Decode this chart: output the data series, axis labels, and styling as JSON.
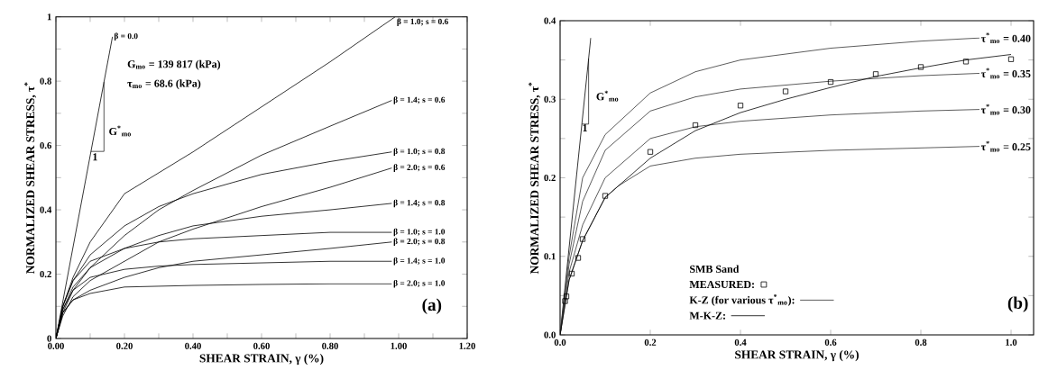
{
  "chart_data": [
    {
      "type": "line",
      "xlabel": "SHEAR STRAIN, γ (%)",
      "ylabel": "NORMALIZED SHEAR STRESS, τ$^{*}$",
      "marker": "none",
      "legend": "right",
      "xlim": [
        0,
        1.2
      ],
      "ylim": [
        0,
        1
      ],
      "xticks": [
        {
          "value": 0,
          "label": "0.00"
        },
        {
          "value": 0.1,
          "label": null
        },
        {
          "value": 0.2,
          "label": "0.20"
        },
        {
          "value": 0.3,
          "label": null
        },
        {
          "value": 0.4,
          "label": "0.40"
        },
        {
          "value": 0.5,
          "label": null
        },
        {
          "value": 0.6,
          "label": "0.60"
        },
        {
          "value": 0.7,
          "label": null
        },
        {
          "value": 0.8,
          "label": "0.80"
        },
        {
          "value": 0.9,
          "label": null
        },
        {
          "value": 1,
          "label": "1.00"
        },
        {
          "value": 1.1,
          "label": null
        },
        {
          "value": 1.2,
          "label": "1.20"
        }
      ],
      "yticks": [
        0,
        {
          "value": 0.1,
          "label": null
        },
        0.2,
        {
          "value": 0.3,
          "label": null
        },
        0.4,
        {
          "value": 0.5,
          "label": null
        },
        0.6,
        {
          "value": 0.7,
          "label": null
        },
        0.8,
        {
          "value": 0.9,
          "label": null
        },
        1
      ],
      "annotations": [
        "G$_{mo}$  =  139 817 (kPa)",
        "τ$_{mo}$  =  68.6 (kPa)",
        "G$^{*}$$_{mo}$",
        {
          "text": "1",
          "x": 0.102,
          "y": 0.58
        },
        "(a)"
      ],
      "series": [
        {
          "name": "β = 0.0",
          "color": "#000000",
          "x": [
            0,
            0.165
          ],
          "values": [
            0,
            0.938
          ]
        },
        {
          "name": "β = 1.0;  s = 0.6",
          "color": "#000000",
          "x": [
            0,
            0.02,
            0.05,
            0.1,
            0.2,
            0.4,
            0.6,
            0.8,
            0.99
          ],
          "values": [
            0,
            0.1,
            0.19,
            0.3,
            0.45,
            0.58,
            0.72,
            0.86,
            1.0
          ]
        },
        {
          "name": "β = 1.4;  s = 0.6",
          "color": "#000000",
          "x": [
            0,
            0.02,
            0.05,
            0.1,
            0.2,
            0.3,
            0.4,
            0.6,
            0.8,
            0.98
          ],
          "values": [
            0,
            0.08,
            0.15,
            0.22,
            0.32,
            0.4,
            0.46,
            0.57,
            0.66,
            0.74
          ]
        },
        {
          "name": "β = 1.0;  s = 0.8",
          "color": "#000000",
          "x": [
            0,
            0.02,
            0.05,
            0.1,
            0.2,
            0.3,
            0.4,
            0.6,
            0.8,
            0.98
          ],
          "values": [
            0,
            0.1,
            0.18,
            0.26,
            0.35,
            0.41,
            0.45,
            0.51,
            0.55,
            0.58
          ]
        },
        {
          "name": "β = 2.0;  s = 0.6",
          "color": "#000000",
          "x": [
            0,
            0.02,
            0.05,
            0.1,
            0.2,
            0.3,
            0.4,
            0.6,
            0.8,
            0.98
          ],
          "values": [
            0,
            0.07,
            0.13,
            0.18,
            0.24,
            0.3,
            0.34,
            0.41,
            0.47,
            0.53
          ]
        },
        {
          "name": "β = 1.4;  s = 0.8",
          "color": "#000000",
          "x": [
            0,
            0.02,
            0.05,
            0.1,
            0.2,
            0.3,
            0.4,
            0.6,
            0.8,
            0.98
          ],
          "values": [
            0,
            0.09,
            0.16,
            0.22,
            0.28,
            0.32,
            0.35,
            0.38,
            0.4,
            0.42
          ]
        },
        {
          "name": "β = 1.0;  s = 1.0",
          "color": "#000000",
          "x": [
            0,
            0.02,
            0.05,
            0.1,
            0.2,
            0.3,
            0.4,
            0.6,
            0.8,
            0.98
          ],
          "values": [
            0,
            0.1,
            0.18,
            0.24,
            0.28,
            0.3,
            0.31,
            0.32,
            0.33,
            0.33
          ]
        },
        {
          "name": "β = 2.0;  s = 0.8",
          "color": "#000000",
          "x": [
            0,
            0.02,
            0.05,
            0.1,
            0.2,
            0.3,
            0.4,
            0.6,
            0.8,
            0.98
          ],
          "values": [
            0,
            0.08,
            0.12,
            0.15,
            0.19,
            0.22,
            0.24,
            0.26,
            0.28,
            0.3
          ]
        },
        {
          "name": "β = 1.4;  s = 1.0",
          "color": "#000000",
          "x": [
            0,
            0.02,
            0.05,
            0.1,
            0.2,
            0.3,
            0.4,
            0.6,
            0.8,
            0.98
          ],
          "values": [
            0,
            0.09,
            0.15,
            0.19,
            0.215,
            0.225,
            0.23,
            0.235,
            0.24,
            0.24
          ]
        },
        {
          "name": "β = 2.0;  s = 1.0",
          "color": "#000000",
          "x": [
            0,
            0.02,
            0.05,
            0.1,
            0.2,
            0.4,
            0.6,
            0.8,
            0.98
          ],
          "values": [
            0,
            0.08,
            0.12,
            0.14,
            0.16,
            0.165,
            0.168,
            0.17,
            0.17
          ]
        }
      ]
    },
    {
      "type": "line",
      "xlabel": "SHEAR STRAIN, γ (%)",
      "ylabel": "NORMALIZED SHEAR STRESS, τ$^{*}$",
      "marker": "none",
      "legend": "bottom left",
      "legend_title": "SMB Sand",
      "xlim": [
        0,
        1.05
      ],
      "ylim": [
        0,
        0.4
      ],
      "xticks": [
        {
          "value": 0,
          "label": "0.0"
        },
        {
          "value": 0.2,
          "label": "0.2"
        },
        {
          "value": 0.4,
          "label": "0.4"
        },
        {
          "value": 0.6,
          "label": "0.6"
        },
        {
          "value": 0.8,
          "label": "0.8"
        },
        {
          "value": 1,
          "label": "1.0"
        }
      ],
      "yticks": [
        {
          "value": 0,
          "label": "0.0"
        },
        {
          "value": 0.05,
          "label": null
        },
        {
          "value": 0.1,
          "label": "0.1"
        },
        {
          "value": 0.15,
          "label": null
        },
        {
          "value": 0.2,
          "label": "0.2"
        },
        {
          "value": 0.25,
          "label": null
        },
        {
          "value": 0.3,
          "label": "0.3"
        },
        {
          "value": 0.35,
          "label": null
        },
        {
          "value": 0.4,
          "label": "0.4"
        }
      ],
      "annotations": [
        {
          "text": "τ$^{*}$$_{mo}$ = 0.40",
          "x": 0.93,
          "y": 0.378
        },
        {
          "text": "τ$^{*}$$_{mo}$ = 0.35",
          "x": 0.93,
          "y": 0.333
        },
        {
          "text": "τ$^{*}$$_{mo}$ = 0.30",
          "x": 0.93,
          "y": 0.287
        },
        {
          "text": "τ$^{*}$$_{mo}$ = 0.25",
          "x": 0.93,
          "y": 0.24
        },
        "G$^{*}$$_{mo}$",
        {
          "text": "1",
          "x": 0.055,
          "y": 0.27
        },
        "(b)"
      ],
      "series": [
        {
          "color": "#000000",
          "x": [
            0,
            0.068
          ],
          "values": [
            0,
            0.378
          ]
        },
        {
          "name": "MEASURED:",
          "type": "scatter",
          "marker": "square",
          "color": "#000000",
          "x": [
            0.011,
            0.014,
            0.026,
            0.04,
            0.05,
            0.1,
            0.2,
            0.3,
            0.4,
            0.5,
            0.6,
            0.7,
            0.8,
            0.9,
            1.0
          ],
          "values": [
            0.043,
            0.049,
            0.078,
            0.098,
            0.122,
            0.177,
            0.233,
            0.267,
            0.292,
            0.31,
            0.322,
            0.332,
            0.341,
            0.348,
            0.351
          ]
        },
        {
          "name": "K-Z (for various τ$^{*}$$_{mo}$):",
          "color": "#333333",
          "x": [
            0,
            0.02,
            0.05,
            0.1,
            0.2,
            0.3,
            0.4,
            0.6,
            0.8,
            0.93
          ],
          "values": [
            0,
            0.1,
            0.2,
            0.255,
            0.308,
            0.335,
            0.35,
            0.365,
            0.374,
            0.378
          ]
        },
        {
          "color": "#333333",
          "x": [
            0,
            0.02,
            0.05,
            0.1,
            0.2,
            0.3,
            0.4,
            0.6,
            0.8,
            0.93
          ],
          "values": [
            0,
            0.09,
            0.17,
            0.235,
            0.285,
            0.303,
            0.313,
            0.323,
            0.33,
            0.333
          ]
        },
        {
          "color": "#333333",
          "x": [
            0,
            0.02,
            0.05,
            0.1,
            0.2,
            0.3,
            0.4,
            0.6,
            0.8,
            0.93
          ],
          "values": [
            0,
            0.08,
            0.14,
            0.2,
            0.25,
            0.265,
            0.272,
            0.28,
            0.285,
            0.287
          ]
        },
        {
          "color": "#333333",
          "x": [
            0,
            0.02,
            0.05,
            0.1,
            0.13,
            0.2,
            0.3,
            0.4,
            0.6,
            0.8,
            0.93
          ],
          "values": [
            0,
            0.07,
            0.12,
            0.175,
            0.19,
            0.215,
            0.225,
            0.23,
            0.235,
            0.238,
            0.24
          ]
        },
        {
          "name": "M-K-Z:",
          "color": "#000000",
          "x": [
            0,
            0.02,
            0.05,
            0.1,
            0.2,
            0.3,
            0.4,
            0.5,
            0.6,
            0.7,
            0.8,
            0.9,
            1.0
          ],
          "values": [
            0,
            0.07,
            0.12,
            0.175,
            0.225,
            0.26,
            0.283,
            0.3,
            0.315,
            0.329,
            0.34,
            0.35,
            0.357
          ]
        }
      ]
    }
  ]
}
